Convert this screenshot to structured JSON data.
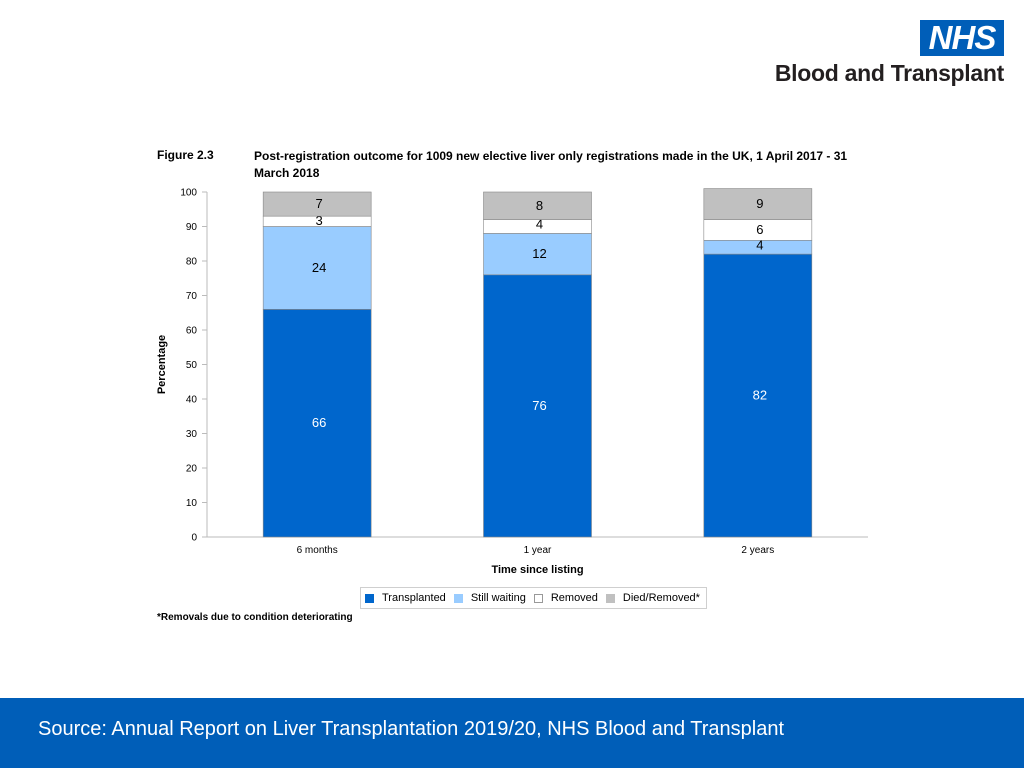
{
  "header": {
    "logo_text": "NHS",
    "org_name": "Blood and Transplant"
  },
  "figure": {
    "label": "Figure 2.3",
    "title": "Post-registration outcome for 1009 new elective liver only registrations made in the UK, 1 April 2017 - 31 March 2018",
    "footnote": "*Removals due to condition deteriorating"
  },
  "chart_data": {
    "type": "bar",
    "stacked": true,
    "categories": [
      "6 months",
      "1 year",
      "2 years"
    ],
    "series": [
      {
        "name": "Transplanted",
        "values": [
          66,
          76,
          82
        ],
        "color": "#0066CC"
      },
      {
        "name": "Still waiting",
        "values": [
          24,
          12,
          4
        ],
        "color": "#99CCFF"
      },
      {
        "name": "Removed",
        "values": [
          3,
          4,
          6
        ],
        "color": "#FFFFFF"
      },
      {
        "name": "Died/Removed*",
        "values": [
          7,
          8,
          9
        ],
        "color": "#C0C0C0"
      }
    ],
    "ylim": [
      0,
      100
    ],
    "yticks": [
      0,
      10,
      20,
      30,
      40,
      50,
      60,
      70,
      80,
      90,
      100
    ],
    "ylabel": "Percentage",
    "xlabel": "Time since listing",
    "legend_position": "bottom"
  },
  "footer": {
    "source": "Source: Annual Report on Liver Transplantation 2019/20, NHS Blood and Transplant"
  }
}
